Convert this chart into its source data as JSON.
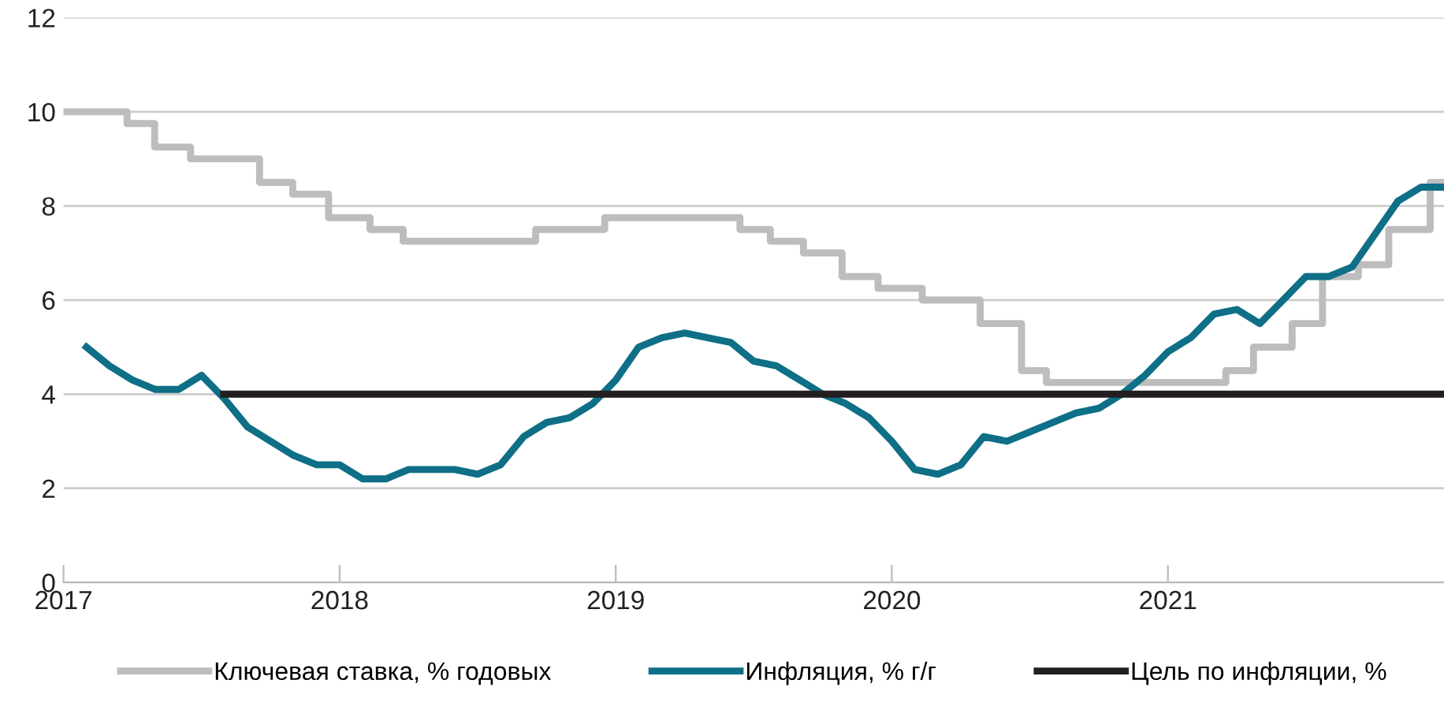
{
  "chart_data": {
    "type": "line",
    "xlim": [
      2017,
      2022
    ],
    "xticks": [
      2017,
      2018,
      2019,
      2020,
      2021
    ],
    "ylim": [
      0,
      12
    ],
    "yticks": [
      0,
      2,
      4,
      6,
      8,
      10,
      12
    ],
    "grid": "y",
    "legend": "bottom",
    "marker": "none",
    "line_style": "solid",
    "series": [
      {
        "name": "Ключевая ставка, % годовых",
        "type": "step",
        "color": "#bdbdbd",
        "x": [
          2017.0,
          2017.23,
          2017.33,
          2017.46,
          2017.71,
          2017.83,
          2017.96,
          2018.11,
          2018.23,
          2018.71,
          2018.96,
          2019.45,
          2019.56,
          2019.68,
          2019.82,
          2019.95,
          2020.11,
          2020.32,
          2020.47,
          2020.56,
          2021.21,
          2021.31,
          2021.45,
          2021.56,
          2021.69,
          2021.8,
          2021.95,
          2022.0
        ],
        "values": [
          10,
          9.75,
          9.25,
          9.0,
          8.5,
          8.25,
          7.75,
          7.5,
          7.25,
          7.5,
          7.75,
          7.5,
          7.25,
          7.0,
          6.5,
          6.25,
          6.0,
          5.5,
          4.5,
          4.25,
          4.5,
          5.0,
          5.5,
          6.5,
          6.75,
          7.5,
          8.5,
          8.5
        ]
      },
      {
        "name": "Инфляция, % г/г",
        "color": "#0e6f87",
        "x": [
          2017.083,
          2017.167,
          2017.25,
          2017.333,
          2017.417,
          2017.5,
          2017.583,
          2017.667,
          2017.75,
          2017.833,
          2017.917,
          2018.0,
          2018.083,
          2018.167,
          2018.25,
          2018.333,
          2018.417,
          2018.5,
          2018.583,
          2018.667,
          2018.75,
          2018.833,
          2018.917,
          2019.0,
          2019.083,
          2019.167,
          2019.25,
          2019.333,
          2019.417,
          2019.5,
          2019.583,
          2019.667,
          2019.75,
          2019.833,
          2019.917,
          2020.0,
          2020.083,
          2020.167,
          2020.25,
          2020.333,
          2020.417,
          2020.5,
          2020.583,
          2020.667,
          2020.75,
          2020.833,
          2020.917,
          2021.0,
          2021.083,
          2021.167,
          2021.25,
          2021.333,
          2021.417,
          2021.5,
          2021.583,
          2021.667,
          2021.75,
          2021.833,
          2021.917,
          2022.0
        ],
        "values": [
          5.0,
          4.6,
          4.3,
          4.1,
          4.1,
          4.4,
          3.9,
          3.3,
          3.0,
          2.7,
          2.5,
          2.5,
          2.2,
          2.2,
          2.4,
          2.4,
          2.4,
          2.3,
          2.5,
          3.1,
          3.4,
          3.5,
          3.8,
          4.3,
          5.0,
          5.2,
          5.3,
          5.2,
          5.1,
          4.7,
          4.6,
          4.3,
          4.0,
          3.8,
          3.5,
          3.0,
          2.4,
          2.3,
          2.5,
          3.1,
          3.0,
          3.2,
          3.4,
          3.6,
          3.7,
          4.0,
          4.4,
          4.9,
          5.2,
          5.7,
          5.8,
          5.5,
          6.0,
          6.5,
          6.5,
          6.7,
          7.4,
          8.1,
          8.4,
          8.4
        ]
      },
      {
        "name": "Цель по инфляции, %",
        "color": "#231f20",
        "x": [
          2017.58,
          2022.0
        ],
        "values": [
          4,
          4
        ]
      }
    ]
  }
}
